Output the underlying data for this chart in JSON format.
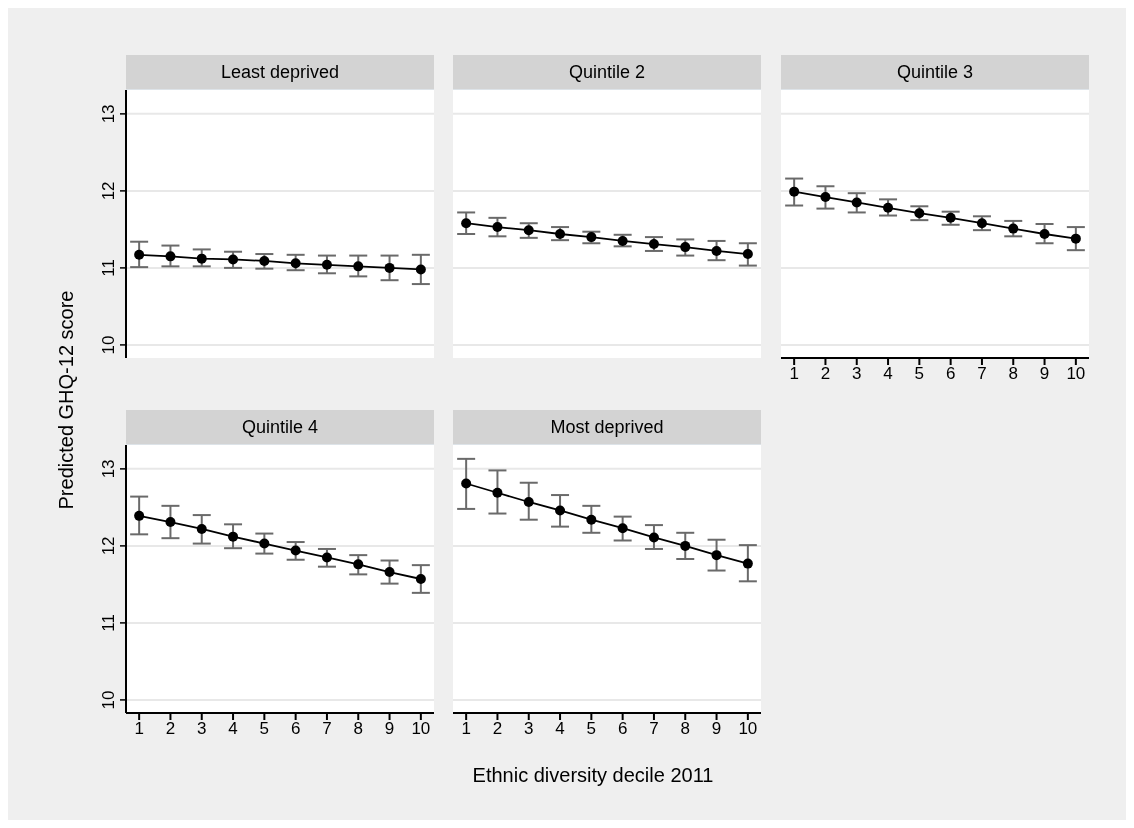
{
  "chart_data": [
    {
      "type": "line",
      "title": "Least deprived",
      "ylabel": "Predicted GHQ-12 score",
      "x": [
        1,
        2,
        3,
        4,
        5,
        6,
        7,
        8,
        9,
        10
      ],
      "xlim": [
        0.58,
        10.42
      ],
      "xticks": [
        1,
        2,
        3,
        4,
        5,
        6,
        7,
        8,
        9,
        10
      ],
      "ylim": [
        9.83,
        13.31
      ],
      "yticks": [
        10,
        11,
        12,
        13
      ],
      "grid": "y",
      "marker": "circle",
      "tick_labels": "y",
      "series": [
        {
          "color": "#000000",
          "values": [
            11.17,
            11.15,
            11.12,
            11.11,
            11.09,
            11.06,
            11.04,
            11.02,
            11.0,
            10.98
          ],
          "errors": [
            [
              11.01,
              11.34
            ],
            [
              11.02,
              11.29
            ],
            [
              11.02,
              11.24
            ],
            [
              11.0,
              11.21
            ],
            [
              10.99,
              11.18
            ],
            [
              10.97,
              11.17
            ],
            [
              10.93,
              11.16
            ],
            [
              10.89,
              11.16
            ],
            [
              10.84,
              11.16
            ],
            [
              10.79,
              11.17
            ]
          ]
        }
      ]
    },
    {
      "type": "line",
      "title": "Quintile 2",
      "x": [
        1,
        2,
        3,
        4,
        5,
        6,
        7,
        8,
        9,
        10
      ],
      "xlim": [
        0.58,
        10.42
      ],
      "xticks": [
        1,
        2,
        3,
        4,
        5,
        6,
        7,
        8,
        9,
        10
      ],
      "ylim": [
        9.83,
        13.31
      ],
      "yticks": [
        10,
        11,
        12,
        13
      ],
      "grid": "y",
      "marker": "circle",
      "tick_labels": false,
      "series": [
        {
          "color": "#000000",
          "values": [
            11.58,
            11.53,
            11.49,
            11.44,
            11.4,
            11.35,
            11.31,
            11.27,
            11.22,
            11.18
          ],
          "errors": [
            [
              11.44,
              11.72
            ],
            [
              11.41,
              11.65
            ],
            [
              11.39,
              11.58
            ],
            [
              11.36,
              11.53
            ],
            [
              11.32,
              11.47
            ],
            [
              11.28,
              11.43
            ],
            [
              11.22,
              11.4
            ],
            [
              11.16,
              11.37
            ],
            [
              11.1,
              11.35
            ],
            [
              11.03,
              11.32
            ]
          ]
        }
      ]
    },
    {
      "type": "line",
      "title": "Quintile 3",
      "x": [
        1,
        2,
        3,
        4,
        5,
        6,
        7,
        8,
        9,
        10
      ],
      "xlim": [
        0.58,
        10.42
      ],
      "xticks": [
        1,
        2,
        3,
        4,
        5,
        6,
        7,
        8,
        9,
        10
      ],
      "ylim": [
        9.83,
        13.31
      ],
      "yticks": [
        10,
        11,
        12,
        13
      ],
      "grid": "y",
      "marker": "circle",
      "tick_labels": "x",
      "series": [
        {
          "color": "#000000",
          "values": [
            11.99,
            11.92,
            11.85,
            11.78,
            11.71,
            11.65,
            11.58,
            11.51,
            11.44,
            11.38
          ],
          "errors": [
            [
              11.81,
              12.16
            ],
            [
              11.77,
              12.06
            ],
            [
              11.72,
              11.97
            ],
            [
              11.68,
              11.89
            ],
            [
              11.62,
              11.8
            ],
            [
              11.56,
              11.73
            ],
            [
              11.49,
              11.67
            ],
            [
              11.41,
              11.61
            ],
            [
              11.32,
              11.57
            ],
            [
              11.23,
              11.53
            ]
          ]
        }
      ]
    },
    {
      "type": "line",
      "title": "Quintile 4",
      "x": [
        1,
        2,
        3,
        4,
        5,
        6,
        7,
        8,
        9,
        10
      ],
      "xlim": [
        0.58,
        10.42
      ],
      "xticks": [
        1,
        2,
        3,
        4,
        5,
        6,
        7,
        8,
        9,
        10
      ],
      "ylim": [
        9.83,
        13.31
      ],
      "yticks": [
        10,
        11,
        12,
        13
      ],
      "grid": "y",
      "marker": "circle",
      "series": [
        {
          "color": "#000000",
          "values": [
            12.39,
            12.31,
            12.22,
            12.12,
            12.03,
            11.94,
            11.85,
            11.76,
            11.66,
            11.57
          ],
          "errors": [
            [
              12.15,
              12.64
            ],
            [
              12.1,
              12.52
            ],
            [
              12.03,
              12.4
            ],
            [
              11.97,
              12.28
            ],
            [
              11.9,
              12.16
            ],
            [
              11.82,
              12.05
            ],
            [
              11.73,
              11.96
            ],
            [
              11.63,
              11.88
            ],
            [
              11.51,
              11.81
            ],
            [
              11.39,
              11.75
            ]
          ]
        }
      ]
    },
    {
      "type": "line",
      "title": "Most deprived",
      "xlabel": "Ethnic diversity decile 2011",
      "x": [
        1,
        2,
        3,
        4,
        5,
        6,
        7,
        8,
        9,
        10
      ],
      "xlim": [
        0.58,
        10.42
      ],
      "xticks": [
        1,
        2,
        3,
        4,
        5,
        6,
        7,
        8,
        9,
        10
      ],
      "ylim": [
        9.83,
        13.31
      ],
      "yticks": [
        10,
        11,
        12,
        13
      ],
      "grid": "y",
      "marker": "circle",
      "tick_labels": "x",
      "series": [
        {
          "color": "#000000",
          "values": [
            12.81,
            12.69,
            12.57,
            12.46,
            12.34,
            12.23,
            12.11,
            12.0,
            11.88,
            11.77
          ],
          "errors": [
            [
              12.48,
              13.13
            ],
            [
              12.42,
              12.98
            ],
            [
              12.34,
              12.82
            ],
            [
              12.25,
              12.66
            ],
            [
              12.17,
              12.52
            ],
            [
              12.07,
              12.38
            ],
            [
              11.96,
              12.27
            ],
            [
              11.83,
              12.17
            ],
            [
              11.68,
              12.08
            ],
            [
              11.54,
              12.01
            ]
          ]
        }
      ]
    }
  ]
}
